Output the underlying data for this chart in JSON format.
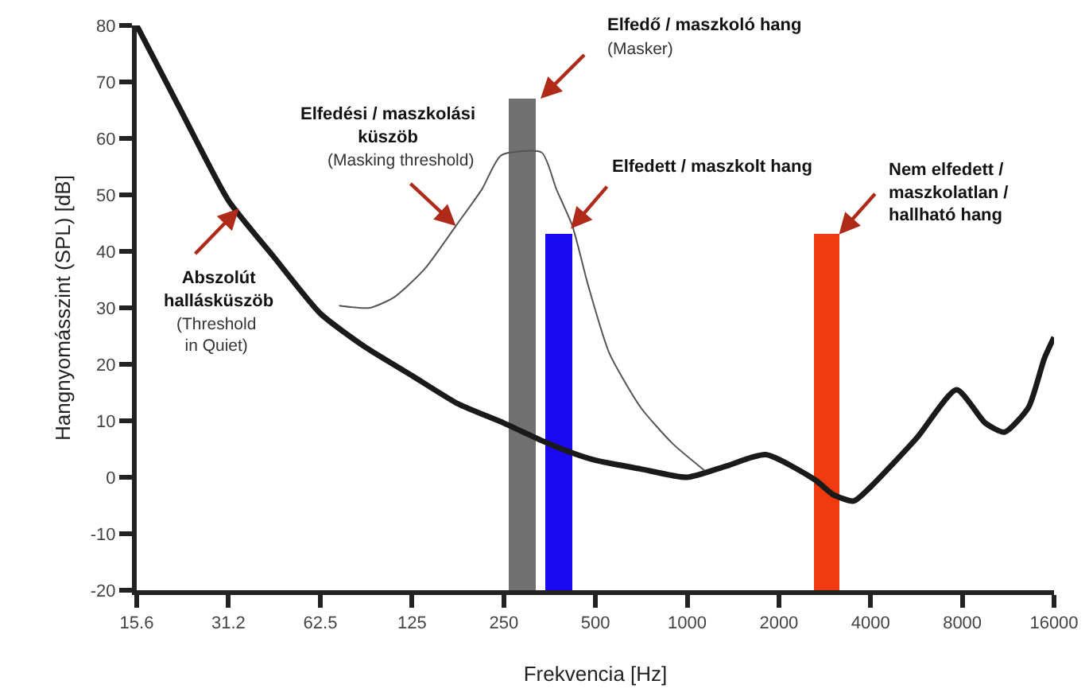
{
  "chart_data": {
    "type": "line",
    "xlabel": "Frekvencia [Hz]",
    "ylabel": "Hangnyomásszint (SPL) [dB]",
    "log": "x",
    "xlim": [
      15.6,
      16000
    ],
    "xticks": [
      15.6,
      31.2,
      62.5,
      125,
      250,
      500,
      1000,
      2000,
      4000,
      8000,
      16000
    ],
    "ylim": [
      -20,
      80
    ],
    "yticks": [
      -20,
      -10,
      0,
      10,
      20,
      30,
      40,
      50,
      60,
      70,
      80
    ],
    "grid": false,
    "series": [
      {
        "color": "#1a1a1a",
        "x": [
          15.6,
          22,
          31.2,
          44,
          62.5,
          88,
          125,
          177,
          250,
          333,
          410,
          500,
          700,
          1000,
          1345,
          1810,
          2636,
          3000,
          3520,
          4000,
          5680,
          7660,
          9520,
          11000,
          13200,
          14860,
          16000
        ],
        "values": [
          80,
          64.5,
          49,
          39,
          29,
          23,
          18,
          13,
          9.6,
          6.5,
          4.5,
          3,
          1.5,
          0,
          2,
          4,
          -0.5,
          -3,
          -4.2,
          -1.7,
          7,
          15.5,
          9.6,
          8,
          12.4,
          21,
          24.8
        ]
      },
      {
        "color": "#555555",
        "x": [
          72,
          91,
          110,
          138,
          174,
          212,
          245,
          333,
          372,
          420,
          473,
          555,
          703,
          894,
          1140
        ],
        "values": [
          30.4,
          30,
          32,
          37,
          44.5,
          51,
          57,
          57.5,
          51,
          44.5,
          34,
          22,
          12.4,
          6,
          1.2
        ]
      },
      {
        "type": "bar",
        "colors": [
          "#707070",
          "#1a0aef",
          "#f03a10"
        ],
        "x": [
          288,
          381,
          2884
        ],
        "base": [
          -20,
          -20,
          -20
        ],
        "values": [
          87,
          63,
          63
        ]
      }
    ],
    "annotations": [
      {
        "text": "Abszolút\nhallásküszöb",
        "x": 33.8,
        "y": 47.6
      },
      "(Threshold\nin Quiet)",
      "Elfedési / maszkolási\nküszöb",
      {
        "text": "(Masking threshold)",
        "x": 174,
        "y": 44.5
      },
      "Elfedő / maszkoló hang",
      "(Masker)",
      {
        "text": "Elfedett / maszkolt hang",
        "x": 415,
        "y": 44
      },
      {
        "text": "Nem elfedett /\nmaszkolatlan /\nhallható hang",
        "x": 3150,
        "y": 43
      }
    ]
  }
}
